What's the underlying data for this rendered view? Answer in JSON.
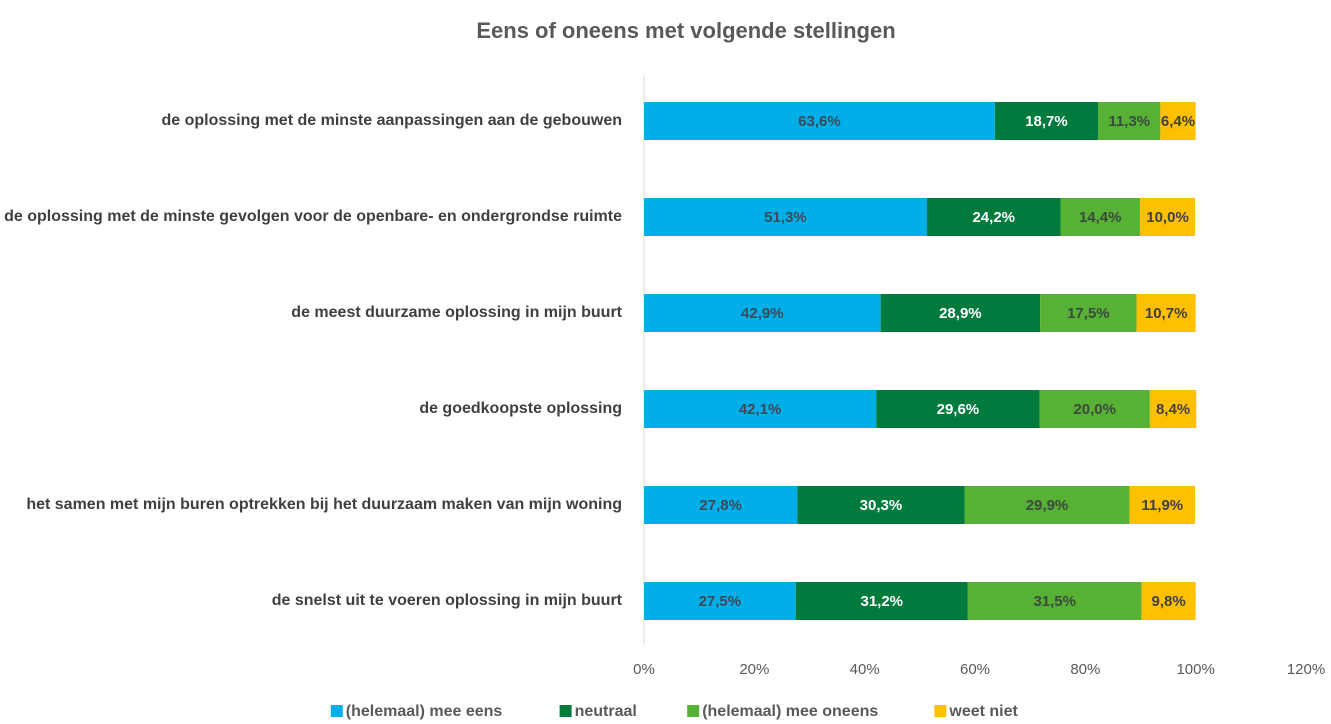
{
  "chart_data": {
    "type": "stacked-bar-horizontal",
    "title": "Eens of oneens met volgende stellingen",
    "categories": [
      "de oplossing met de minste aanpassingen aan de gebouwen",
      "de oplossing met de minste gevolgen voor de openbare- en ondergrondse ruimte",
      "de meest duurzame oplossing in mijn buurt",
      "de goedkoopste oplossing",
      "het samen met mijn buren optrekken bij het duurzaam maken van mijn woning",
      "de snelst uit te voeren oplossing in mijn buurt"
    ],
    "series": [
      {
        "name": "(helemaal) mee eens",
        "color": "#00aee8",
        "label_color": "#3a4a5a",
        "values": [
          63.6,
          51.3,
          42.9,
          42.1,
          27.8,
          27.5
        ],
        "value_labels": [
          "63,6%",
          "51,3%",
          "42,9%",
          "42,1%",
          "27,8%",
          "27,5%"
        ]
      },
      {
        "name": "neutraal",
        "color": "#007a3d",
        "label_color": "#ffffff",
        "values": [
          18.7,
          24.2,
          28.9,
          29.6,
          30.3,
          31.2
        ],
        "value_labels": [
          "18,7%",
          "24,2%",
          "28,9%",
          "29,6%",
          "30,3%",
          "31,2%"
        ]
      },
      {
        "name": "(helemaal) mee oneens",
        "color": "#57b135",
        "label_color": "#3a4a3a",
        "values": [
          11.3,
          14.4,
          17.5,
          20.0,
          29.9,
          31.5
        ],
        "value_labels": [
          "11,3%",
          "14,4%",
          "17,5%",
          "20,0%",
          "29,9%",
          "31,5%"
        ]
      },
      {
        "name": "weet niet",
        "color": "#ffc000",
        "label_color": "#404040",
        "values": [
          6.4,
          10.0,
          10.7,
          8.4,
          11.9,
          9.8
        ],
        "value_labels": [
          "6,4%",
          "10,0%",
          "10,7%",
          "8,4%",
          "11,9%",
          "9,8%"
        ]
      }
    ],
    "xlim": [
      0,
      120
    ],
    "xticks": [
      {
        "value": 0,
        "label": "0%"
      },
      {
        "value": 20,
        "label": "20%"
      },
      {
        "value": 40,
        "label": "40%"
      },
      {
        "value": 60,
        "label": "60%"
      },
      {
        "value": 80,
        "label": "80%"
      },
      {
        "value": 100,
        "label": "100%"
      },
      {
        "value": 120,
        "label": "120%"
      }
    ],
    "legend": "bottom"
  }
}
